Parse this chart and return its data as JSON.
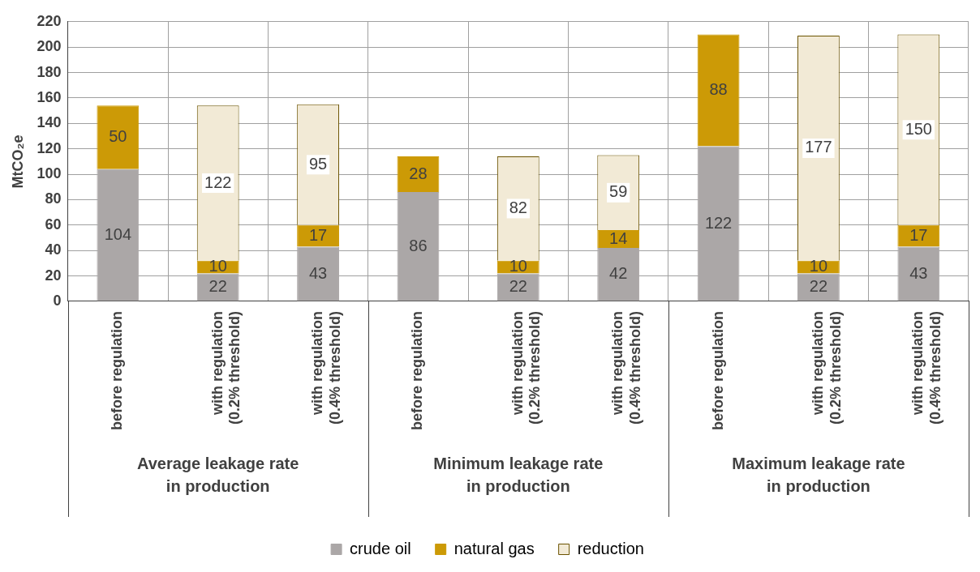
{
  "chart_data": {
    "type": "bar",
    "stacked": true,
    "ylabel": "MtCO₂e",
    "categories": [
      "before regulation",
      "with regulation\n(0.2% threshold)",
      "with regulation\n(0.4% threshold)",
      "before regulation",
      "with regulation\n(0.2% threshold)",
      "with regulation\n(0.4% threshold)",
      "before regulation",
      "with regulation\n(0.2% threshold)",
      "with regulation\n(0.4% threshold)"
    ],
    "series": [
      {
        "name": "crude oil",
        "color": "#aba7a7",
        "values": [
          104,
          22,
          43,
          86,
          22,
          42,
          122,
          22,
          43
        ]
      },
      {
        "name": "natural gas",
        "color": "#cc9a06",
        "values": [
          50,
          10,
          17,
          28,
          10,
          14,
          88,
          10,
          17
        ]
      },
      {
        "name": "reduction",
        "color": "#f2ead6",
        "values": [
          null,
          122,
          95,
          null,
          82,
          59,
          null,
          177,
          150
        ]
      }
    ],
    "annotations": [
      "Average leakage rate\nin production",
      "Minimum leakage rate\nin production",
      "Maximum leakage rate\nin production"
    ],
    "ylim": [
      0,
      220
    ],
    "yticks": [
      0,
      20,
      40,
      60,
      80,
      100,
      120,
      140,
      160,
      180,
      200,
      220
    ],
    "grid": true,
    "legend": "bottom",
    "data_labels": true
  }
}
